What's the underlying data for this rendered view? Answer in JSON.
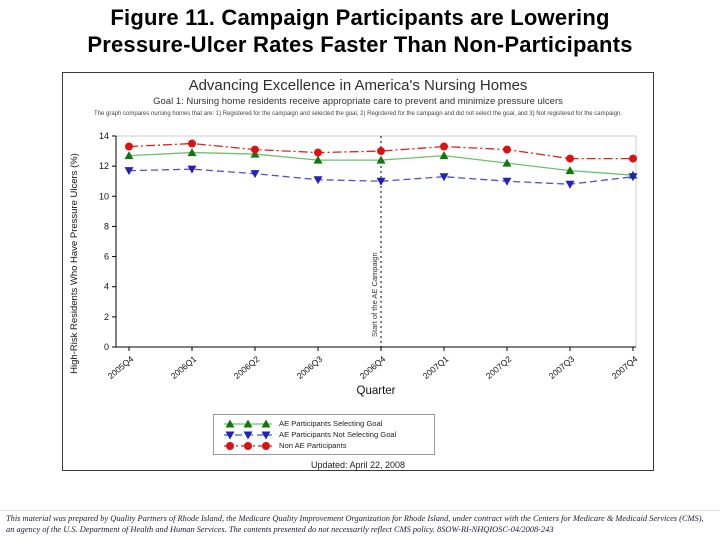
{
  "slide": {
    "title_line1": "Figure 11. Campaign Participants are Lowering",
    "title_line2": "Pressure-Ulcer Rates Faster Than Non-Participants",
    "footer_line1": "This material was prepared by Quality Partners of Rhode Island, the Medicare Quality Improvement Organization for Rhode Island, under contract with the Centers for Medicare & Medicaid Services (CMS),",
    "footer_line2": "an agency of the U.S. Department of Health and Human Services. The contents presented do not necessarily reflect CMS policy. 8SOW-RI-NHQIOSC-04/2008-243"
  },
  "chart": {
    "title": "Advancing Excellence in America's Nursing Homes",
    "subtitle": "Goal 1: Nursing home residents receive appropriate care to prevent and minimize pressure ulcers",
    "note": "The graph compares nursing homes that are: 1) Registered for the campaign and selected the goal, 2) Registered for the campaign and did not select the goal, and 3) Not registered for the campaign.",
    "updated": "Updated: April 22, 2008"
  },
  "chart_data": {
    "type": "line",
    "title": "Advancing Excellence in America's Nursing Homes",
    "categories": [
      "2005Q4",
      "2006Q1",
      "2006Q2",
      "2006Q3",
      "2006Q4",
      "2007Q1",
      "2007Q2",
      "2007Q3",
      "2007Q4"
    ],
    "series": [
      {
        "name": "AE Participants Selecting Goal",
        "marker": "triangle-up",
        "marker_color": "#117711",
        "line_color": "#6fbf6f",
        "line_style": "solid",
        "values": [
          12.7,
          12.9,
          12.8,
          12.4,
          12.4,
          12.7,
          12.2,
          11.7,
          11.4
        ]
      },
      {
        "name": "AE Participants Not Selecting Goal",
        "marker": "triangle-down",
        "marker_color": "#2222bb",
        "line_color": "#5050cc",
        "line_style": "dashed",
        "values": [
          11.7,
          11.8,
          11.5,
          11.1,
          11.0,
          11.3,
          11.0,
          10.8,
          11.3
        ]
      },
      {
        "name": "Non AE Participants",
        "marker": "circle",
        "marker_color": "#dd1111",
        "line_color": "#dd2222",
        "line_style": "dashdot",
        "values": [
          13.3,
          13.5,
          13.1,
          12.9,
          13.0,
          13.3,
          13.1,
          12.5,
          12.5
        ]
      }
    ],
    "xlabel": "Quarter",
    "ylabel": "High-Risk Residents Who Have Pressure Ulcers (%)",
    "ylim": [
      0,
      14
    ],
    "ytick_step": 2,
    "annotation": {
      "x_category": "2006Q4",
      "label": "Start of the AE Campaign"
    },
    "legend_position": "bottom-inside",
    "grid": false
  }
}
